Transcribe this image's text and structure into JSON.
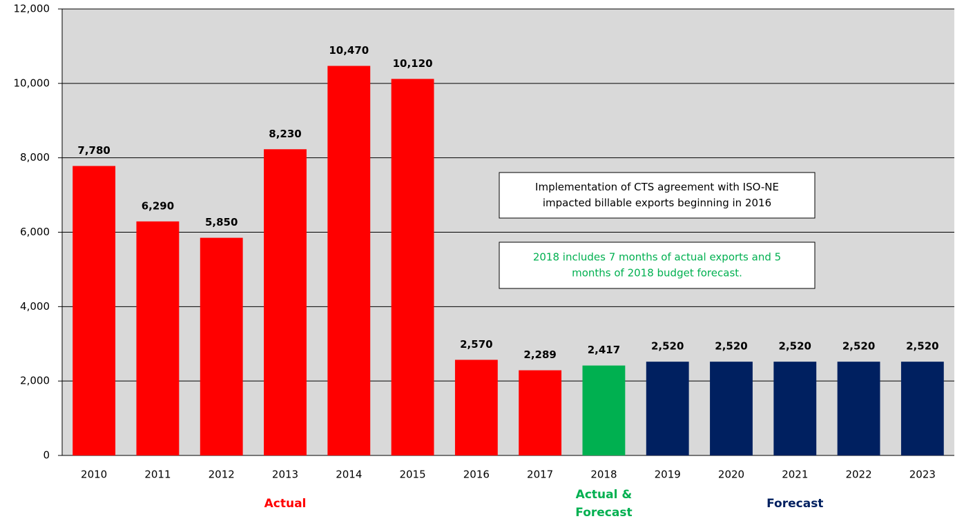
{
  "chart_data": {
    "type": "bar",
    "categories": [
      "2010",
      "2011",
      "2012",
      "2013",
      "2014",
      "2015",
      "2016",
      "2017",
      "2018",
      "2019",
      "2020",
      "2021",
      "2022",
      "2023"
    ],
    "values": [
      7780,
      6290,
      5850,
      8230,
      10470,
      10120,
      2570,
      2289,
      2417,
      2520,
      2520,
      2520,
      2520,
      2520
    ],
    "value_labels": [
      "7,780",
      "6,290",
      "5,850",
      "8,230",
      "10,470",
      "10,120",
      "2,570",
      "2,289",
      "2,417",
      "2,520",
      "2,520",
      "2,520",
      "2,520",
      "2,520"
    ],
    "colors": [
      "#ff0000",
      "#ff0000",
      "#ff0000",
      "#ff0000",
      "#ff0000",
      "#ff0000",
      "#ff0000",
      "#ff0000",
      "#00b050",
      "#002060",
      "#002060",
      "#002060",
      "#002060",
      "#002060"
    ],
    "ylim": [
      0,
      12000
    ],
    "yticks": [
      0,
      {
        "value": 2000,
        "label": "2,000"
      },
      {
        "value": 4000,
        "label": "4,000"
      },
      {
        "value": 6000,
        "label": "6,000"
      },
      {
        "value": 8000,
        "label": "8,000"
      },
      {
        "value": 10000,
        "label": "10,000"
      },
      {
        "value": 12000,
        "label": "12,000"
      }
    ],
    "grid": true,
    "group_labels": [
      {
        "lines": [
          "Actual"
        ],
        "color": "#ff0000"
      },
      {
        "lines": [
          "Actual &",
          "Forecast"
        ],
        "color": "#00b050"
      },
      {
        "lines": [
          "Forecast"
        ],
        "color": "#002060"
      }
    ],
    "annotations": [
      {
        "lines": [
          "Implementation of CTS agreement with ISO-NE",
          "impacted billable exports beginning in 2016"
        ],
        "color": "#000000"
      },
      {
        "lines": [
          "2018 includes 7 months of actual exports and 5",
          "months of 2018 budget forecast."
        ],
        "color": "#00b050"
      }
    ]
  }
}
